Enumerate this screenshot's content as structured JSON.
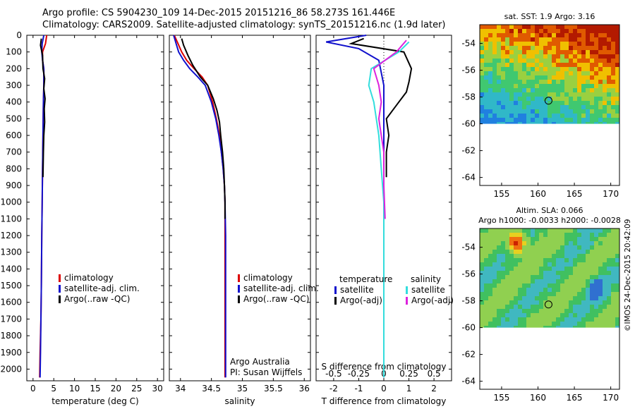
{
  "header": {
    "line1": "Argo profile: CS 5904230_109 14-Dec-2015 20151216_86 58.273S 161.446E",
    "line2": "Climatology: CARS2009. Satellite-adjusted climatology: synTS_20151216.nc (1.9d later)"
  },
  "stamp": "©IMOS 24-Dec-2015 20:42:09",
  "colors": {
    "climatology": "#dd0000",
    "satellite": "#1111cc",
    "argo": "#000000",
    "sat_salinity": "#33dddd",
    "argo_salinity": "#dd22dd"
  },
  "depth_ticks": [
    "0",
    "100",
    "200",
    "300",
    "400",
    "500",
    "600",
    "700",
    "800",
    "900",
    "1000",
    "1100",
    "1200",
    "1300",
    "1400",
    "1500",
    "1600",
    "1700",
    "1800",
    "1900",
    "2000"
  ],
  "chart_data": [
    {
      "id": "temperature",
      "type": "line",
      "title": "",
      "xlabel": "temperature (deg C)",
      "ylabel": "",
      "xlim": [
        -1.5,
        31.5
      ],
      "ylim": [
        2070,
        0
      ],
      "xticks": [
        "0",
        "5",
        "10",
        "15",
        "20",
        "25",
        "30"
      ],
      "legend": [
        "climatology",
        "satellite-adj. clim.",
        "Argo(..raw -QC)"
      ],
      "series": [
        {
          "name": "climatology",
          "points": [
            [
              3.3,
              0
            ],
            [
              3.0,
              50
            ],
            [
              2.3,
              100
            ],
            [
              2.3,
              150
            ],
            [
              2.6,
              200
            ],
            [
              2.6,
              300
            ],
            [
              2.5,
              400
            ],
            [
              2.4,
              600
            ],
            [
              2.3,
              800
            ],
            [
              2.2,
              1000
            ],
            [
              2.1,
              1200
            ],
            [
              2.0,
              1500
            ],
            [
              1.9,
              1700
            ],
            [
              1.7,
              1900
            ],
            [
              1.6,
              2050
            ]
          ]
        },
        {
          "name": "satellite-adj. clim.",
          "points": [
            [
              2.6,
              0
            ],
            [
              2.2,
              50
            ],
            [
              2.1,
              100
            ],
            [
              2.3,
              150
            ],
            [
              2.6,
              200
            ],
            [
              2.6,
              300
            ],
            [
              2.5,
              400
            ],
            [
              2.4,
              600
            ],
            [
              2.3,
              800
            ],
            [
              2.2,
              1000
            ],
            [
              2.1,
              1200
            ],
            [
              2.0,
              1500
            ],
            [
              1.9,
              1700
            ],
            [
              1.8,
              1900
            ],
            [
              1.7,
              2050
            ]
          ]
        },
        {
          "name": "Argo(..raw -QC)",
          "points": [
            [
              2.0,
              20
            ],
            [
              1.8,
              60
            ],
            [
              2.3,
              120
            ],
            [
              2.4,
              200
            ],
            [
              2.8,
              260
            ],
            [
              2.6,
              320
            ],
            [
              2.9,
              380
            ],
            [
              2.7,
              440
            ],
            [
              2.8,
              520
            ],
            [
              2.6,
              600
            ],
            [
              2.5,
              700
            ],
            [
              2.4,
              850
            ]
          ]
        }
      ]
    },
    {
      "id": "salinity",
      "type": "line",
      "title": "",
      "xlabel": "salinity",
      "ylabel": "",
      "xlim": [
        33.82,
        36.1
      ],
      "ylim": [
        2070,
        0
      ],
      "xticks": [
        "34",
        "34.5",
        "35",
        "35.5",
        "36"
      ],
      "legend": [
        "climatology",
        "satellite-adj. clim.",
        "Argo(..raw -QC)"
      ],
      "annotation": [
        "Argo Australia",
        "PI: Susan Wijffels"
      ],
      "series": [
        {
          "name": "climatology",
          "points": [
            [
              33.9,
              0
            ],
            [
              33.96,
              50
            ],
            [
              34.02,
              100
            ],
            [
              34.1,
              150
            ],
            [
              34.22,
              200
            ],
            [
              34.35,
              250
            ],
            [
              34.44,
              300
            ],
            [
              34.52,
              400
            ],
            [
              34.58,
              500
            ],
            [
              34.63,
              600
            ],
            [
              34.66,
              700
            ],
            [
              34.69,
              800
            ],
            [
              34.71,
              900
            ],
            [
              34.72,
              1000
            ],
            [
              34.72,
              1200
            ],
            [
              34.72,
              1500
            ],
            [
              34.72,
              2050
            ]
          ]
        },
        {
          "name": "satellite-adj. clim.",
          "points": [
            [
              33.89,
              0
            ],
            [
              33.93,
              50
            ],
            [
              33.97,
              100
            ],
            [
              34.05,
              150
            ],
            [
              34.15,
              200
            ],
            [
              34.28,
              250
            ],
            [
              34.4,
              300
            ],
            [
              34.5,
              400
            ],
            [
              34.57,
              500
            ],
            [
              34.62,
              600
            ],
            [
              34.66,
              700
            ],
            [
              34.69,
              800
            ],
            [
              34.71,
              900
            ],
            [
              34.72,
              1000
            ],
            [
              34.73,
              1200
            ],
            [
              34.73,
              1500
            ],
            [
              34.73,
              2050
            ]
          ]
        },
        {
          "name": "Argo(..raw -QC)",
          "points": [
            [
              34.02,
              20
            ],
            [
              34.05,
              60
            ],
            [
              34.12,
              120
            ],
            [
              34.2,
              180
            ],
            [
              34.32,
              250
            ],
            [
              34.44,
              300
            ],
            [
              34.53,
              380
            ],
            [
              34.59,
              450
            ],
            [
              34.63,
              520
            ],
            [
              34.65,
              600
            ],
            [
              34.68,
              700
            ],
            [
              34.7,
              800
            ],
            [
              34.71,
              900
            ],
            [
              34.72,
              1000
            ],
            [
              34.72,
              1100
            ]
          ]
        }
      ]
    },
    {
      "id": "difference",
      "type": "line",
      "title": "",
      "xlabel": "T difference from climatology",
      "xlabel2": "S difference from climatology",
      "xlim": [
        -2.7,
        2.7
      ],
      "ylim": [
        2070,
        0
      ],
      "xticks": [
        "-2",
        "-1",
        "0",
        "1",
        "2"
      ],
      "xticks_s": [
        "-0.5",
        "-0.25",
        "0",
        "0.25",
        "0.5"
      ],
      "legend_headers": [
        "temperature",
        "salinity"
      ],
      "legend": [
        "satellite",
        "Argo(-adj)",
        "satellite",
        "Argo(-adj)"
      ],
      "series": [
        {
          "name": "T satellite",
          "points": [
            [
              -0.7,
              0
            ],
            [
              -2.3,
              40
            ],
            [
              -1.0,
              80
            ],
            [
              -0.2,
              150
            ],
            [
              0,
              300
            ],
            [
              0,
              600
            ],
            [
              0,
              1000
            ],
            [
              0,
              2050
            ]
          ]
        },
        {
          "name": "T Argo(-adj)",
          "points": [
            [
              -0.8,
              20
            ],
            [
              -1.3,
              50
            ],
            [
              0.8,
              100
            ],
            [
              1.1,
              200
            ],
            [
              1.0,
              280
            ],
            [
              0.9,
              340
            ],
            [
              0.6,
              400
            ],
            [
              0.4,
              440
            ],
            [
              0.1,
              500
            ],
            [
              0.2,
              600
            ],
            [
              0.1,
              700
            ],
            [
              0.1,
              850
            ]
          ]
        },
        {
          "name": "S satellite",
          "points": [
            [
              1.0,
              40
            ],
            [
              0.6,
              100
            ],
            [
              -0.5,
              200
            ],
            [
              -0.6,
              300
            ],
            [
              -0.4,
              400
            ],
            [
              -0.2,
              600
            ],
            [
              -0.1,
              800
            ],
            [
              0,
              1000
            ],
            [
              0,
              1400
            ],
            [
              0,
              2050
            ]
          ]
        },
        {
          "name": "S Argo(-adj)",
          "points": [
            [
              0.9,
              30
            ],
            [
              0.5,
              100
            ],
            [
              -0.4,
              200
            ],
            [
              -0.2,
              300
            ],
            [
              -0.1,
              400
            ],
            [
              -0.2,
              500
            ],
            [
              -0.1,
              600
            ],
            [
              0,
              700
            ],
            [
              0,
              900
            ],
            [
              0.05,
              1100
            ]
          ]
        }
      ]
    }
  ],
  "maps": [
    {
      "id": "sst",
      "title": "sat. SST: 1.9 Argo: 3.16",
      "subtitle": "",
      "xticks": [
        "155",
        "160",
        "165",
        "170"
      ],
      "yticks": [
        "-54",
        "-56",
        "-58",
        "-60",
        "-62",
        "-64"
      ],
      "marker": {
        "lon": 161.446,
        "lat": -58.273
      },
      "data_coverage_lat": -60
    },
    {
      "id": "sla",
      "title": "Altim. SLA: 0.066",
      "subtitle": "Argo h1000: -0.0033 h2000: -0.0028",
      "xticks": [
        "155",
        "160",
        "165",
        "170"
      ],
      "yticks": [
        "-54",
        "-56",
        "-58",
        "-60",
        "-62",
        "-64"
      ],
      "marker": {
        "lon": 161.446,
        "lat": -58.273
      },
      "data_coverage_lat": -60
    }
  ]
}
